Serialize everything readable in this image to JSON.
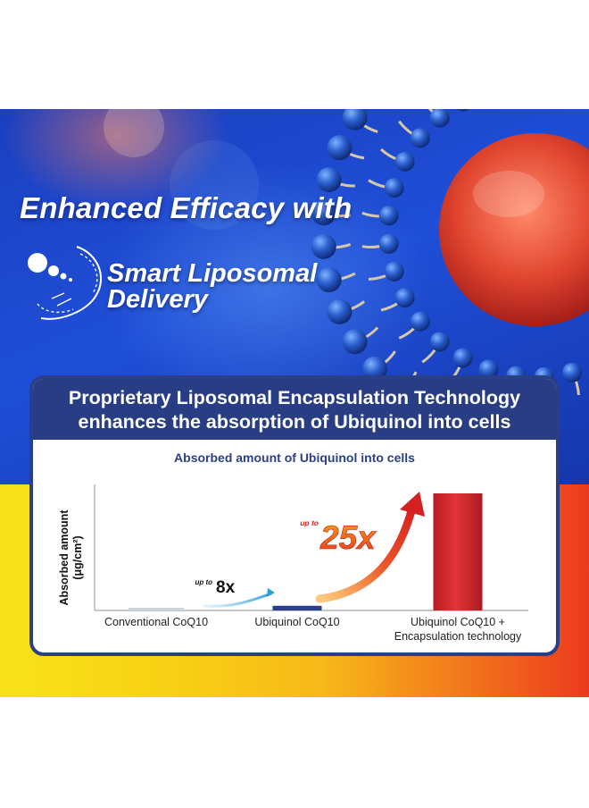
{
  "banner": {
    "headline": "Enhanced Efficacy with",
    "logo_line1": "Smart Liposomal",
    "logo_line2": "Delivery"
  },
  "card": {
    "title_line1": "Proprietary Liposomal Encapsulation Technology",
    "title_line2": "enhances the absorption of Ubiquinol into cells"
  },
  "chart_data": {
    "type": "bar",
    "title": "Absorbed amount of Ubiquinol into cells",
    "ylabel_line1": "Absorbed amount",
    "ylabel_line2": "(μg/cm²)",
    "categories": [
      [
        "Conventional CoQ10"
      ],
      [
        "Ubiquinol CoQ10"
      ],
      [
        "Ubiquinol CoQ10 +",
        "Encapsulation technology"
      ]
    ],
    "values": [
      1,
      8,
      200
    ],
    "colors": [
      "#cfd3dc",
      "#2a3f86",
      "#d42a2a"
    ],
    "annotations": [
      {
        "prefix": "up to",
        "value": "8x"
      },
      {
        "prefix": "up to",
        "value": "25x"
      }
    ]
  }
}
